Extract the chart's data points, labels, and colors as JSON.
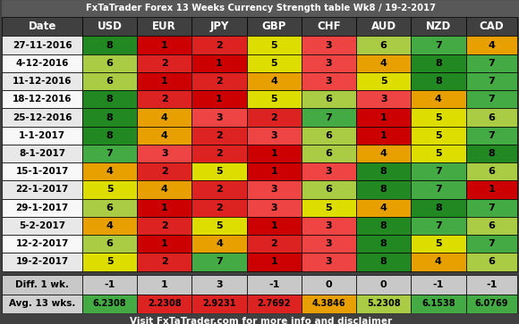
{
  "title": "FxTaTrader Forex 13 Weeks Currency Strength table Wk8 / 19-2-2017",
  "footer": "Visit FxTaTrader.com for more info and disclaimer",
  "columns": [
    "Date",
    "USD",
    "EUR",
    "JPY",
    "GBP",
    "CHF",
    "AUD",
    "NZD",
    "CAD"
  ],
  "rows": [
    {
      "date": "27-11-2016",
      "values": [
        8,
        1,
        2,
        5,
        3,
        6,
        7,
        4
      ]
    },
    {
      "date": "4-12-2016",
      "values": [
        6,
        2,
        1,
        5,
        3,
        4,
        8,
        7
      ]
    },
    {
      "date": "11-12-2016",
      "values": [
        6,
        1,
        2,
        4,
        3,
        5,
        8,
        7
      ]
    },
    {
      "date": "18-12-2016",
      "values": [
        8,
        2,
        1,
        5,
        6,
        3,
        4,
        7
      ]
    },
    {
      "date": "25-12-2016",
      "values": [
        8,
        4,
        3,
        2,
        7,
        1,
        5,
        6
      ]
    },
    {
      "date": "1-1-2017",
      "values": [
        8,
        4,
        2,
        3,
        6,
        1,
        5,
        7
      ]
    },
    {
      "date": "8-1-2017",
      "values": [
        7,
        3,
        2,
        1,
        6,
        4,
        5,
        8
      ]
    },
    {
      "date": "15-1-2017",
      "values": [
        4,
        2,
        5,
        1,
        3,
        8,
        7,
        6
      ]
    },
    {
      "date": "22-1-2017",
      "values": [
        5,
        4,
        2,
        3,
        6,
        8,
        7,
        1
      ]
    },
    {
      "date": "29-1-2017",
      "values": [
        6,
        1,
        2,
        3,
        5,
        4,
        8,
        7
      ]
    },
    {
      "date": "5-2-2017",
      "values": [
        4,
        2,
        5,
        1,
        3,
        8,
        7,
        6
      ]
    },
    {
      "date": "12-2-2017",
      "values": [
        6,
        1,
        4,
        2,
        3,
        8,
        5,
        7
      ]
    },
    {
      "date": "19-2-2017",
      "values": [
        5,
        2,
        7,
        1,
        3,
        8,
        4,
        6
      ]
    }
  ],
  "diff_row": {
    "label": "Diff. 1 wk.",
    "values": [
      -1,
      1,
      3,
      -1,
      0,
      0,
      -1,
      -1
    ]
  },
  "avg_row": {
    "label": "Avg. 13 wks.",
    "values": [
      6.2308,
      2.2308,
      2.9231,
      2.7692,
      4.3846,
      5.2308,
      6.1538,
      6.0769
    ]
  },
  "header_bg": "#404040",
  "header_fg": "#ffffff",
  "title_bg": "#585858",
  "footer_bg": "#404040",
  "footer_fg": "#ffffff",
  "date_col_bg": "#ffffff",
  "date_col_fg": "#000000",
  "diff_bg": "#c8c8c8",
  "diff_fg": "#000000",
  "avg_fg": "#000000",
  "color_map": {
    "1": "#cc0000",
    "2": "#dd2222",
    "3": "#ee4444",
    "4": "#e8a000",
    "5": "#dddd00",
    "6": "#aacc44",
    "7": "#44aa44",
    "8": "#228822"
  },
  "avg_color_map": {
    "low": "#dd2222",
    "mid": "#e8a000",
    "high": "#aacc44",
    "top": "#44aa44"
  }
}
